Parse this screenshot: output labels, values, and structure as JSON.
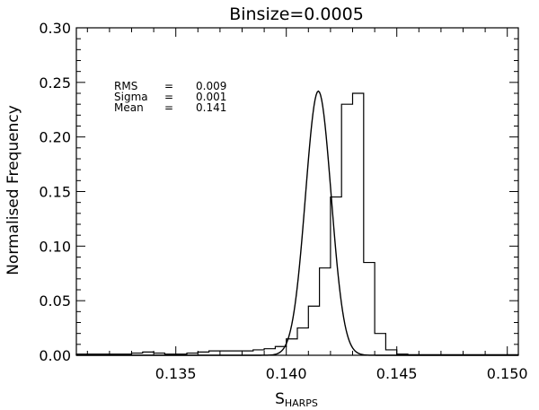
{
  "chart_data": {
    "type": "histogram",
    "title": "Binsize=0.0005",
    "xlabel": "S",
    "xlabel_subscript": "HARPS",
    "ylabel": "Normalised Frequency",
    "xlim": [
      0.1305,
      0.1505
    ],
    "ylim": [
      0,
      0.3
    ],
    "x_ticks": [
      0.135,
      0.14,
      0.145,
      0.15
    ],
    "x_tick_labels": [
      "0.135",
      "0.140",
      "0.145",
      "0.150"
    ],
    "y_ticks": [
      0,
      0.05,
      0.1,
      0.15,
      0.2,
      0.25,
      0.3
    ],
    "y_tick_labels": [
      "0.00",
      "0.05",
      "0.10",
      "0.15",
      "0.20",
      "0.25",
      "0.30"
    ],
    "grid": false,
    "stats": [
      {
        "label": "RMS",
        "eq": "=",
        "value": "0.009"
      },
      {
        "label": "Sigma",
        "eq": "=",
        "value": "0.001"
      },
      {
        "label": "Mean",
        "eq": "=",
        "value": "0.141"
      }
    ],
    "histogram": {
      "bin_edges": [
        0.1305,
        0.131,
        0.1315,
        0.132,
        0.1325,
        0.133,
        0.1335,
        0.134,
        0.1345,
        0.135,
        0.1355,
        0.136,
        0.1365,
        0.137,
        0.1375,
        0.138,
        0.1385,
        0.139,
        0.1395,
        0.14,
        0.1405,
        0.141,
        0.1415,
        0.142,
        0.1425,
        0.143,
        0.1435,
        0.144,
        0.1445,
        0.145,
        0.1455,
        0.146,
        0.1465,
        0.147,
        0.1475,
        0.148,
        0.1485,
        0.149,
        0.1495,
        0.15,
        0.1505
      ],
      "counts": [
        0.001,
        0.001,
        0.001,
        0.001,
        0.001,
        0.002,
        0.003,
        0.002,
        0.001,
        0.001,
        0.002,
        0.003,
        0.004,
        0.004,
        0.004,
        0.004,
        0.005,
        0.006,
        0.008,
        0.015,
        0.025,
        0.045,
        0.08,
        0.145,
        0.23,
        0.24,
        0.085,
        0.02,
        0.005,
        0.001,
        0.0005,
        0.0005,
        0.0005,
        0.0005,
        0.0005,
        0.0005,
        0.0005,
        0.0005,
        0.0005,
        0.0005
      ]
    },
    "gaussian_fit": {
      "mean": 0.14145,
      "sigma": 0.00058,
      "peak": 0.242
    }
  }
}
